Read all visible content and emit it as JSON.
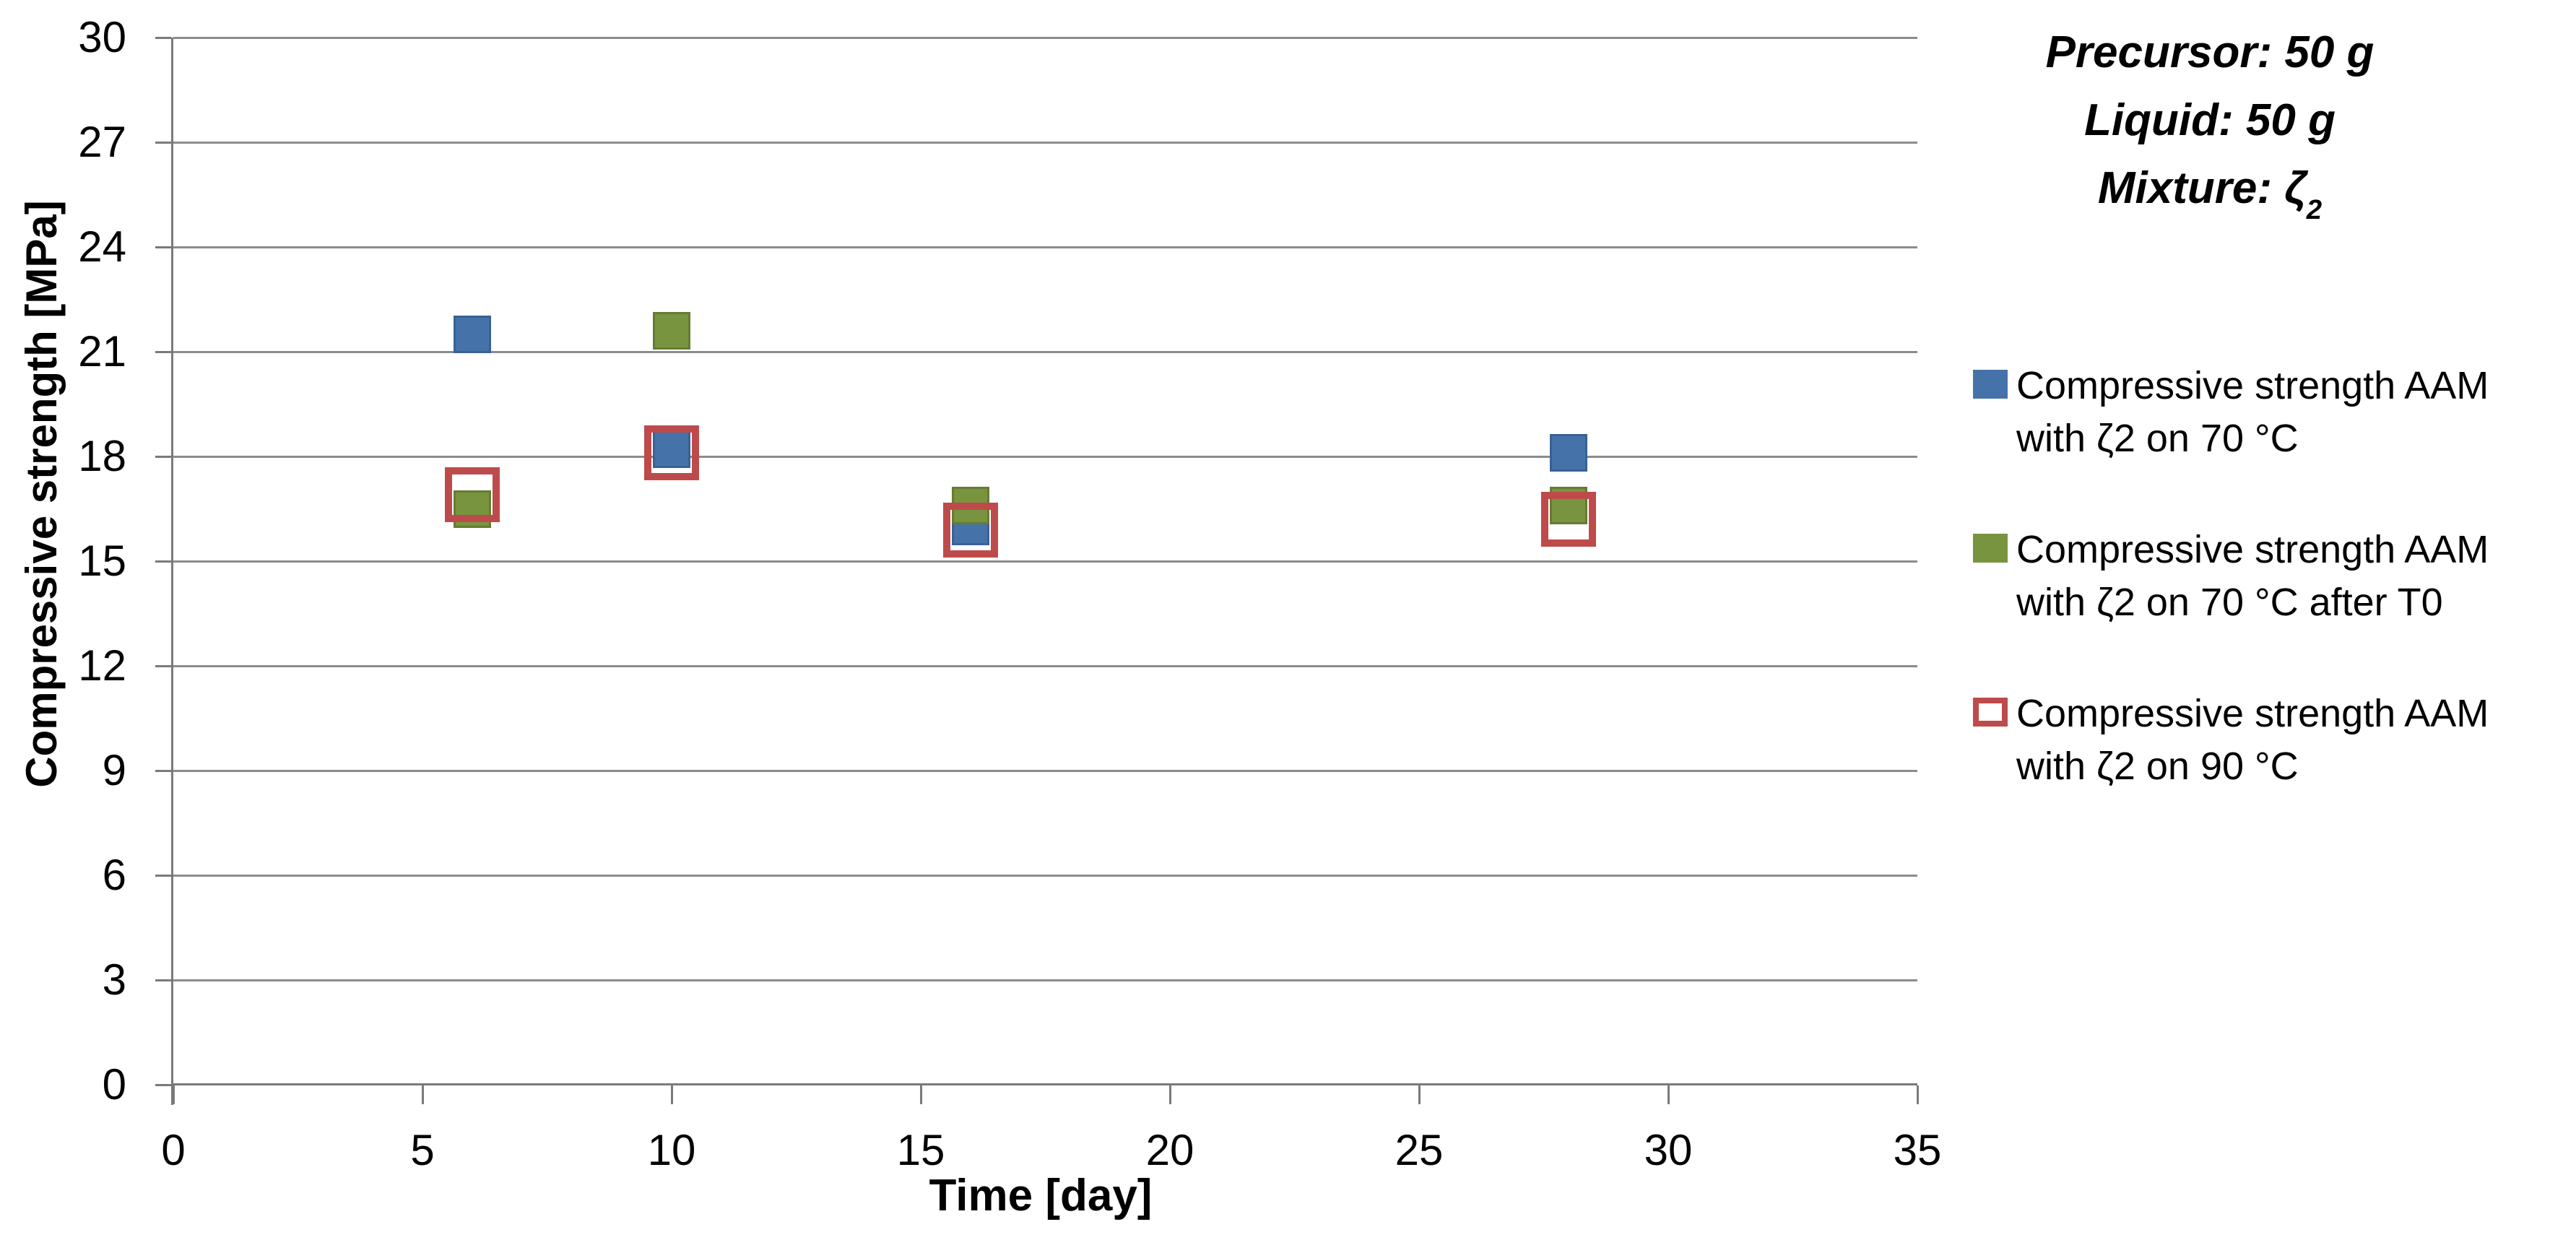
{
  "chart_data": {
    "type": "scatter",
    "title": "",
    "xlabel": "Time [day]",
    "ylabel": "Compressive strength [MPa]",
    "xlim": [
      0,
      35
    ],
    "ylim": [
      0,
      30
    ],
    "x_ticks": [
      0,
      5,
      10,
      15,
      20,
      25,
      30,
      35
    ],
    "y_ticks": [
      30,
      27,
      24,
      21,
      18,
      15,
      12,
      9,
      6,
      3,
      0
    ],
    "grid": "horizontal gridlines every 3 MPa, gray",
    "legend_position": "right",
    "series": [
      {
        "name": "Compressive strength AAM with ζ2 on 70 °C",
        "marker": "filled-square",
        "color": "#4573A9",
        "border_color": "#3A6193",
        "x": [
          6,
          10,
          16,
          28
        ],
        "y": [
          21.5,
          18.2,
          16.0,
          18.1
        ]
      },
      {
        "name": "Compressive strength AAM with ζ2 on 70 °C after T0",
        "marker": "filled-square",
        "color": "#78943E",
        "border_color": "#657C33",
        "x": [
          6,
          10,
          16,
          28
        ],
        "y": [
          16.5,
          21.6,
          16.6,
          16.6
        ]
      },
      {
        "name": "Compressive strength AAM with ζ2 on 90 °C",
        "marker": "hollow-square",
        "color": "#BE4B4B",
        "border_color": "#BE4B4B",
        "x": [
          6,
          10,
          16,
          28
        ],
        "y": [
          16.9,
          18.1,
          15.9,
          16.2
        ]
      }
    ],
    "annotation": [
      "Precursor: 50 g",
      "Liquid: 50 g",
      "Mixture: ζ₂"
    ]
  },
  "y_axis": {
    "title": "Compressive strength [MPa]"
  },
  "x_axis": {
    "title": "Time [day]"
  },
  "annotation": {
    "line1": "Precursor: 50 g",
    "line2": "Liquid: 50 g",
    "line3_main": "Mixture: ζ",
    "line3_sub": "2"
  },
  "legend": {
    "entries": [
      {
        "line1": "Compressive strength AAM",
        "line2": "with ζ2 on 70 °C",
        "swatch": "filled",
        "color": "#4573A9"
      },
      {
        "line1": "Compressive strength AAM",
        "line2": "with ζ2 on 70 °C after T0",
        "swatch": "filled",
        "color": "#78943E"
      },
      {
        "line1": "Compressive strength AAM",
        "line2": "with ζ2 on 90 °C",
        "swatch": "hollow",
        "color": "#BE4B4B"
      }
    ]
  },
  "colors": {
    "background": "#FFFFFF",
    "gridline": "#8C8C8C",
    "axis": "#7A7A7A",
    "text": "#000000"
  }
}
